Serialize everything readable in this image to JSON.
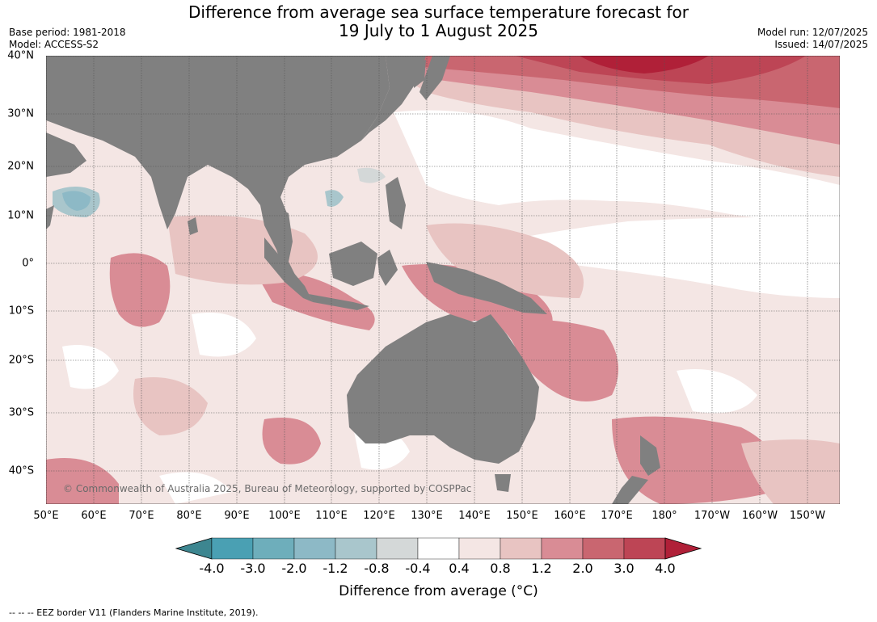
{
  "title_line1": "Difference from average sea surface temperature forecast for",
  "title_line2": "19 July to 1 August 2025",
  "base_period": "Base period: 1981-2018",
  "model": "Model: ACCESS-S2",
  "model_run": "Model run: 12/07/2025",
  "issued": "Issued: 14/07/2025",
  "lat_labels": [
    "40°N",
    "30°N",
    "20°N",
    "10°N",
    "0°",
    "10°S",
    "20°S",
    "30°S",
    "40°S"
  ],
  "lon_labels": [
    "50°E",
    "60°E",
    "70°E",
    "80°E",
    "90°E",
    "100°E",
    "110°E",
    "120°E",
    "130°E",
    "140°E",
    "150°E",
    "160°E",
    "170°E",
    "180°",
    "170°W",
    "160°W",
    "150°W"
  ],
  "colorbar": {
    "ticks": [
      "-4.0",
      "-3.0",
      "-2.0",
      "-1.2",
      "-0.8",
      "-0.4",
      "0.4",
      "0.8",
      "1.2",
      "2.0",
      "3.0",
      "4.0"
    ],
    "colors": [
      "#3d8690",
      "#4aa0b3",
      "#6eaebb",
      "#8db9c6",
      "#a9c6cc",
      "#d4d8d8",
      "#ffffff",
      "#f4e6e4",
      "#e8c4c2",
      "#d98c95",
      "#c96670",
      "#bd4555",
      "#b02038"
    ],
    "title": "Difference from average (°C)"
  },
  "credit": "© Commonwealth of Australia 2025, Bureau of Meteorology, supported by COSPPac",
  "footer": "--  --  -- EEZ border V11 (Flanders Marine Institute, 2019).",
  "colors": {
    "land": "#808080",
    "ocean_base": "#f4e6e4"
  }
}
